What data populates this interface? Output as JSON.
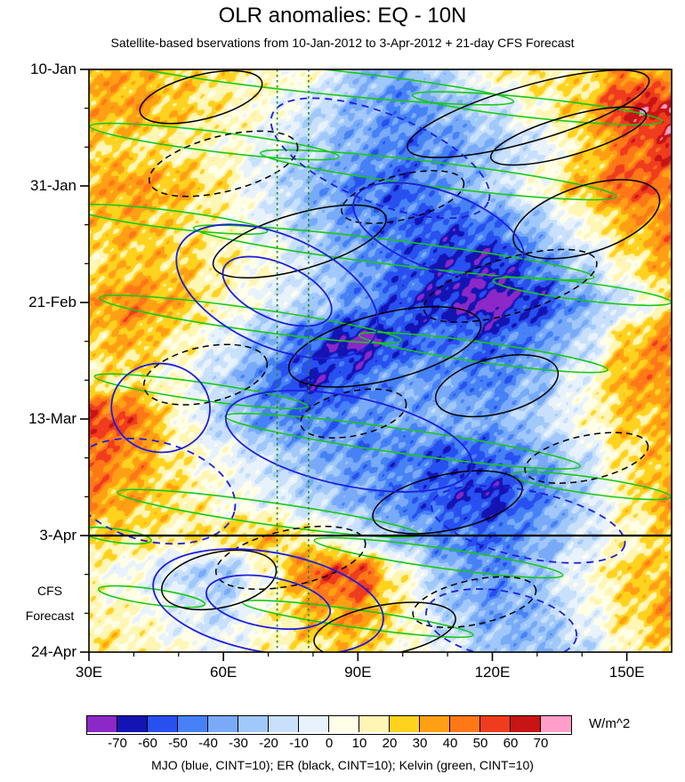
{
  "caption": "MJO (blue, CINT=10); ER (black, CINT=10); Kelvin (green, CINT=10)",
  "chart_data": {
    "type": "heatmap",
    "title": "OLR anomalies: EQ - 10N",
    "subtitle": "Satellite-based bservations from 10-Jan-2012 to 3-Apr-2012 + 21-day CFS Forecast",
    "units": "W/m^2",
    "x_axis": {
      "min": 30,
      "max": 160,
      "major_ticks": [
        {
          "value": 30,
          "label": "30E"
        },
        {
          "value": 60,
          "label": "60E"
        },
        {
          "value": 90,
          "label": "90E"
        },
        {
          "value": 120,
          "label": "120E"
        },
        {
          "value": 150,
          "label": "150E"
        }
      ],
      "minor_ticks": [
        40,
        50,
        70,
        80,
        100,
        110,
        130,
        140
      ]
    },
    "y_axis": {
      "min": 0,
      "max": 105,
      "direction": "down",
      "major_ticks": [
        {
          "day": 0,
          "label": "10-Jan"
        },
        {
          "day": 21,
          "label": "31-Jan"
        },
        {
          "day": 42,
          "label": "21-Feb"
        },
        {
          "day": 63,
          "label": "13-Mar"
        },
        {
          "day": 84,
          "label": "3-Apr"
        },
        {
          "day": 105,
          "label": "24-Apr"
        }
      ],
      "minor_ticks": [
        7,
        14,
        28,
        35,
        49,
        56,
        70,
        77,
        91,
        98
      ]
    },
    "forecast_boundary": {
      "day": 84,
      "label": "3-Apr"
    },
    "forecast_region_label": [
      "CFS",
      "Forecast"
    ],
    "vertical_guides_lon": [
      72,
      79
    ],
    "guide_color": "#1E8C1E",
    "levels": [
      -70,
      -60,
      -50,
      -40,
      -30,
      -20,
      -10,
      0,
      10,
      20,
      30,
      40,
      50,
      60,
      70
    ],
    "palette": [
      "#8C28C8",
      "#1414B4",
      "#2850F0",
      "#4682F5",
      "#78AAF8",
      "#A0C8FA",
      "#C8E0FB",
      "#E8F2FD",
      "#FFFFE8",
      "#FFF5B4",
      "#FFD21E",
      "#FFA014",
      "#FF7818",
      "#F03C1E",
      "#C81414",
      "#FF9EC8"
    ],
    "colorbar_labels": [
      "-70",
      "-60",
      "-50",
      "-40",
      "-30",
      "-20",
      "-10",
      "0",
      "10",
      "20",
      "30",
      "40",
      "50",
      "60",
      "70"
    ],
    "grid": {
      "lons": [
        30,
        40,
        50,
        60,
        70,
        80,
        90,
        100,
        110,
        120,
        130,
        140,
        150,
        160
      ],
      "days": [
        0,
        7,
        14,
        21,
        28,
        35,
        42,
        49,
        56,
        63,
        70,
        77,
        84,
        91,
        98,
        105
      ],
      "values": [
        [
          35,
          30,
          25,
          18,
          12,
          5,
          -25,
          -35,
          -15,
          10,
          20,
          15,
          40,
          30
        ],
        [
          30,
          35,
          25,
          15,
          5,
          -12,
          -30,
          -42,
          -30,
          -15,
          10,
          25,
          60,
          65
        ],
        [
          25,
          20,
          15,
          10,
          -5,
          -20,
          -35,
          -45,
          -40,
          -25,
          -10,
          20,
          45,
          58
        ],
        [
          30,
          36,
          30,
          15,
          -10,
          -30,
          -45,
          -52,
          -35,
          -20,
          5,
          30,
          50,
          45
        ],
        [
          25,
          30,
          20,
          10,
          -5,
          -25,
          -40,
          -50,
          -55,
          -45,
          -25,
          5,
          30,
          40
        ],
        [
          20,
          26,
          25,
          15,
          5,
          -15,
          -35,
          -50,
          -60,
          -65,
          -45,
          -20,
          15,
          35
        ],
        [
          30,
          42,
          30,
          10,
          -5,
          -20,
          -40,
          -55,
          -65,
          -75,
          -60,
          -35,
          -10,
          20
        ],
        [
          25,
          30,
          15,
          -5,
          -30,
          -55,
          -74,
          -55,
          -45,
          -52,
          -40,
          -20,
          25,
          45
        ],
        [
          15,
          20,
          5,
          -20,
          -45,
          -62,
          -50,
          -35,
          -40,
          -45,
          -30,
          0,
          35,
          40
        ],
        [
          58,
          48,
          10,
          -20,
          -40,
          -45,
          -40,
          -35,
          -30,
          -35,
          -20,
          5,
          25,
          30
        ],
        [
          48,
          36,
          15,
          0,
          -15,
          -30,
          -40,
          -45,
          -55,
          -50,
          -35,
          -15,
          20,
          30
        ],
        [
          40,
          30,
          20,
          5,
          -5,
          -20,
          -35,
          -45,
          -55,
          -62,
          -45,
          -20,
          15,
          35
        ],
        [
          25,
          20,
          15,
          20,
          28,
          12,
          -10,
          -30,
          -45,
          -50,
          -35,
          -15,
          10,
          25
        ],
        [
          10,
          0,
          -15,
          -25,
          8,
          48,
          55,
          10,
          -30,
          -42,
          -25,
          0,
          25,
          30
        ],
        [
          15,
          10,
          -5,
          -15,
          10,
          30,
          38,
          15,
          -20,
          -35,
          -30,
          -5,
          20,
          35
        ],
        [
          20,
          15,
          5,
          0,
          10,
          20,
          25,
          10,
          -5,
          -25,
          -30,
          -15,
          10,
          25
        ]
      ]
    },
    "contours": {
      "format": "[center_lon_E, center_day, rx_deg, ry_days, tilt_deg, dashed]",
      "mjo": {
        "color": "#1E1EDC",
        "legend": "MJO (blue, CINT=10)",
        "items": [
          [
            95,
            16,
            26,
            8,
            22,
            1
          ],
          [
            72,
            40,
            24,
            10,
            24,
            0
          ],
          [
            72,
            40,
            13,
            5,
            24,
            0
          ],
          [
            108,
            29,
            20,
            7,
            20,
            0
          ],
          [
            46,
            61,
            11,
            8,
            5,
            0
          ],
          [
            44,
            76,
            19,
            9,
            14,
            1
          ],
          [
            88,
            67,
            28,
            8,
            12,
            0
          ],
          [
            128,
            82,
            22,
            6,
            12,
            1
          ],
          [
            70,
            96,
            26,
            9,
            10,
            0
          ],
          [
            70,
            96,
            14,
            4.5,
            10,
            0
          ],
          [
            122,
            100,
            17,
            6,
            10,
            1
          ]
        ]
      },
      "er": {
        "color": "#000000",
        "legend": "ER (black, CINT=10)",
        "items": [
          [
            55,
            5,
            14,
            4,
            -14,
            0
          ],
          [
            128,
            8,
            28,
            5,
            -16,
            0
          ],
          [
            137,
            12,
            18,
            3.5,
            -16,
            0
          ],
          [
            60,
            17,
            17,
            5,
            -14,
            1
          ],
          [
            100,
            23,
            14,
            4,
            -14,
            1
          ],
          [
            77,
            31,
            20,
            5,
            -16,
            0
          ],
          [
            141,
            27,
            17,
            6,
            -18,
            0
          ],
          [
            124,
            39,
            20,
            5,
            -16,
            1
          ],
          [
            96,
            50,
            22,
            6,
            -14,
            0
          ],
          [
            56,
            55,
            14,
            5,
            -12,
            1
          ],
          [
            89,
            62,
            12,
            4,
            -12,
            1
          ],
          [
            121,
            57,
            14,
            5,
            -14,
            0
          ],
          [
            141,
            70,
            14,
            4,
            -12,
            1
          ],
          [
            110,
            78,
            17,
            5,
            -12,
            0
          ],
          [
            75,
            88,
            17,
            5,
            -12,
            1
          ],
          [
            59,
            92,
            13,
            5,
            -12,
            0
          ],
          [
            116,
            96,
            14,
            4,
            -12,
            1
          ],
          [
            96,
            101,
            16,
            4.5,
            -10,
            0
          ]
        ]
      },
      "kelvin": {
        "color": "#18C818",
        "legend": "Kelvin (green, CINT=10)",
        "items": [
          [
            80,
            2,
            45,
            2.2,
            6,
            0
          ],
          [
            130,
            7,
            28,
            1.8,
            6,
            0
          ],
          [
            58,
            13,
            28,
            1.8,
            7,
            0
          ],
          [
            108,
            19,
            40,
            2.2,
            7,
            0
          ],
          [
            48,
            27,
            22,
            1.6,
            7,
            0
          ],
          [
            98,
            33,
            45,
            2.2,
            7,
            0
          ],
          [
            140,
            40,
            20,
            1.6,
            7,
            0
          ],
          [
            66,
            45,
            34,
            2,
            8,
            0
          ],
          [
            118,
            51,
            28,
            1.8,
            8,
            0
          ],
          [
            55,
            58,
            24,
            1.6,
            8,
            0
          ],
          [
            100,
            67,
            40,
            2.2,
            8,
            0
          ],
          [
            142,
            75,
            18,
            1.5,
            8,
            0
          ],
          [
            70,
            80,
            34,
            2,
            8,
            0
          ],
          [
            36,
            84,
            8,
            1.2,
            8,
            0
          ],
          [
            108,
            88,
            28,
            1.8,
            8,
            0
          ],
          [
            44,
            95,
            12,
            1.4,
            8,
            0
          ],
          [
            90,
            99,
            26,
            1.6,
            8,
            0
          ]
        ]
      }
    }
  }
}
